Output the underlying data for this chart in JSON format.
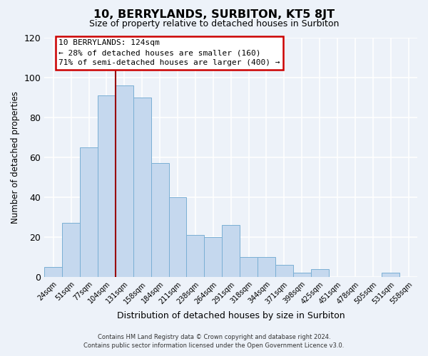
{
  "title": "10, BERRYLANDS, SURBITON, KT5 8JT",
  "subtitle": "Size of property relative to detached houses in Surbiton",
  "xlabel": "Distribution of detached houses by size in Surbiton",
  "ylabel": "Number of detached properties",
  "bar_labels": [
    "24sqm",
    "51sqm",
    "77sqm",
    "104sqm",
    "131sqm",
    "158sqm",
    "184sqm",
    "211sqm",
    "238sqm",
    "264sqm",
    "291sqm",
    "318sqm",
    "344sqm",
    "371sqm",
    "398sqm",
    "425sqm",
    "451sqm",
    "478sqm",
    "505sqm",
    "531sqm",
    "558sqm"
  ],
  "bar_values": [
    5,
    27,
    65,
    91,
    96,
    90,
    57,
    40,
    21,
    20,
    26,
    10,
    10,
    6,
    2,
    4,
    0,
    0,
    0,
    2,
    0
  ],
  "bar_color": "#c5d8ee",
  "bar_edge_color": "#7aafd4",
  "red_line_x": 4.5,
  "annotation_title": "10 BERRYLANDS: 124sqm",
  "annotation_line1": "← 28% of detached houses are smaller (160)",
  "annotation_line2": "71% of semi-detached houses are larger (400) →",
  "annotation_box_color": "#ffffff",
  "annotation_box_edgecolor": "#cc0000",
  "ylim": [
    0,
    120
  ],
  "yticks": [
    0,
    20,
    40,
    60,
    80,
    100,
    120
  ],
  "footer_line1": "Contains HM Land Registry data © Crown copyright and database right 2024.",
  "footer_line2": "Contains public sector information licensed under the Open Government Licence v3.0.",
  "background_color": "#edf2f9",
  "grid_color": "#ffffff"
}
